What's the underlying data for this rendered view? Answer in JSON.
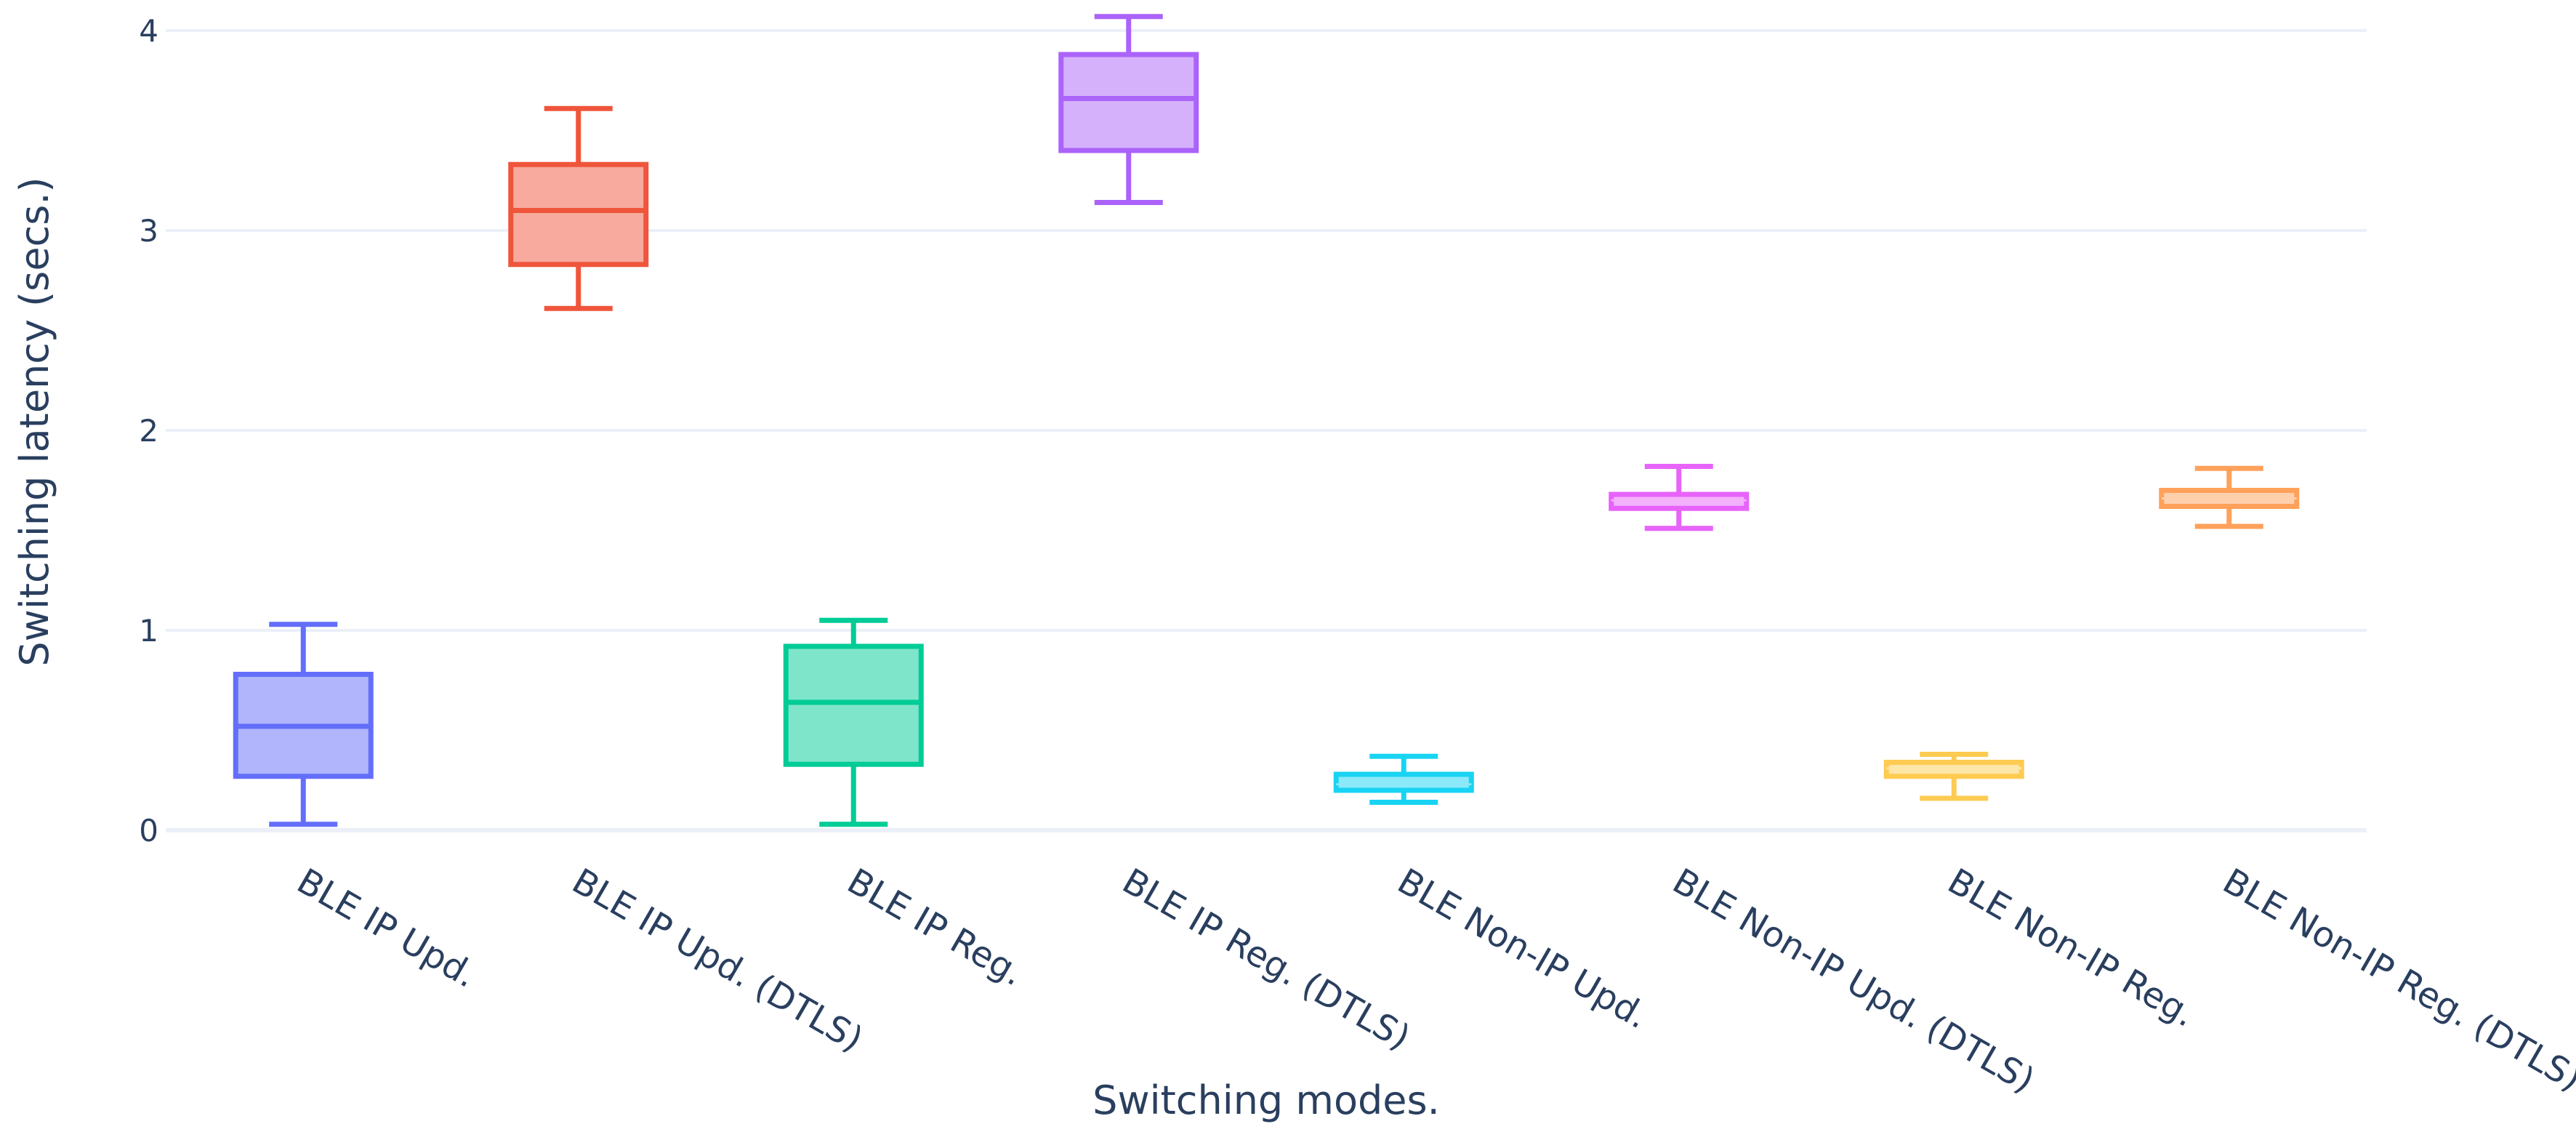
{
  "chart_data": {
    "type": "box",
    "title": "",
    "xlabel": "Switching modes.",
    "ylabel": "Switching latency (secs.)",
    "ylim": [
      0,
      4
    ],
    "yticks": [
      0,
      1,
      2,
      3,
      4
    ],
    "grid": true,
    "legend": "none",
    "categories": [
      "BLE IP Upd.",
      "BLE IP Upd. (DTLS)",
      "BLE IP Reg.",
      "BLE IP Reg. (DTLS)",
      "BLE Non-IP Upd.",
      "BLE Non-IP Upd. (DTLS)",
      "BLE Non-IP Reg.",
      "BLE Non-IP Reg. (DTLS)"
    ],
    "series": [
      {
        "name": "BLE IP Upd.",
        "min": 0.03,
        "q1": 0.27,
        "median": 0.52,
        "q3": 0.78,
        "max": 1.03,
        "color": "#636efa",
        "fill": "#b1b6fc"
      },
      {
        "name": "BLE IP Upd. (DTLS)",
        "min": 2.61,
        "q1": 2.83,
        "median": 3.1,
        "q3": 3.33,
        "max": 3.61,
        "color": "#ef553b",
        "fill": "#f7aa9d"
      },
      {
        "name": "BLE IP Reg.",
        "min": 0.03,
        "q1": 0.33,
        "median": 0.64,
        "q3": 0.92,
        "max": 1.05,
        "color": "#00cc96",
        "fill": "#7fe5ca"
      },
      {
        "name": "BLE IP Reg. (DTLS)",
        "min": 3.14,
        "q1": 3.4,
        "median": 3.66,
        "q3": 3.88,
        "max": 4.07,
        "color": "#ab63fa",
        "fill": "#d5b1fc"
      },
      {
        "name": "BLE Non-IP Upd.",
        "min": 0.14,
        "q1": 0.2,
        "median": 0.23,
        "q3": 0.28,
        "max": 0.37,
        "color": "#19d3f3",
        "fill": "#8ce9f9"
      },
      {
        "name": "BLE Non-IP Upd. (DTLS)",
        "min": 1.51,
        "q1": 1.61,
        "median": 1.65,
        "q3": 1.68,
        "max": 1.82,
        "color": "#e763fa",
        "fill": "#f3b1fc"
      },
      {
        "name": "BLE Non-IP Reg.",
        "min": 0.16,
        "q1": 0.27,
        "median": 0.31,
        "q3": 0.34,
        "max": 0.38,
        "color": "#fecb52",
        "fill": "#fee5a8"
      },
      {
        "name": "BLE Non-IP Reg. (DTLS)",
        "min": 1.52,
        "q1": 1.62,
        "median": 1.66,
        "q3": 1.7,
        "max": 1.81,
        "color": "#ffa15a",
        "fill": "#ffd0ac"
      }
    ]
  }
}
